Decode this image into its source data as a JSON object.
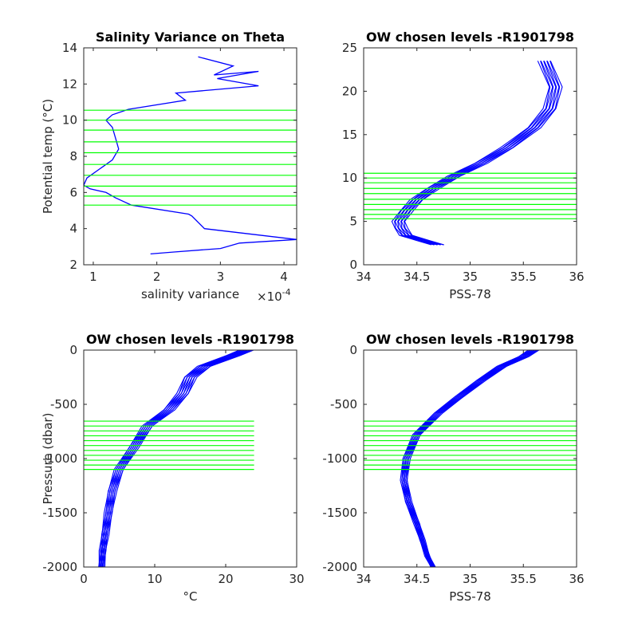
{
  "chart_data": [
    {
      "id": "p1",
      "type": "line",
      "title": "Salinity Variance on Theta",
      "xlabel": "salinity variance",
      "ylabel": "Potential temp (°C)",
      "x_multiplier_label": "×10",
      "x_multiplier_exp": "-4",
      "xlim": [
        0.85,
        4.2
      ],
      "ylim": [
        2,
        14
      ],
      "xticks": [
        1,
        2,
        3,
        4
      ],
      "yticks": [
        2,
        4,
        6,
        8,
        10,
        12,
        14
      ],
      "series": [
        {
          "x": [
            2.65,
            3.2,
            2.9,
            3.6,
            2.95,
            3.6,
            2.3,
            2.45,
            1.55,
            1.3,
            1.2,
            1.3,
            1.35,
            1.4,
            1.3,
            1.1,
            0.9,
            0.85,
            0.95,
            1.2,
            1.35,
            1.6,
            2.5,
            2.55,
            2.75,
            4.2,
            3.3,
            3.0,
            2.25,
            1.9
          ],
          "y": [
            13.5,
            13.0,
            12.5,
            12.7,
            12.3,
            11.9,
            11.5,
            11.1,
            10.6,
            10.3,
            10.0,
            9.6,
            9.0,
            8.4,
            7.8,
            7.3,
            6.8,
            6.4,
            6.2,
            6.0,
            5.7,
            5.3,
            4.8,
            4.7,
            4.0,
            3.4,
            3.2,
            2.9,
            2.7,
            2.6
          ]
        }
      ],
      "hlines": [
        5.3,
        5.8,
        6.35,
        6.95,
        7.55,
        8.2,
        8.8,
        9.45,
        10.0,
        10.55
      ],
      "hline_span": [
        0.85,
        4.2
      ]
    },
    {
      "id": "p2",
      "type": "line",
      "title": "OW chosen levels -R1901798",
      "xlabel": "PSS-78",
      "ylabel": "",
      "xlim": [
        34,
        36
      ],
      "ylim": [
        0,
        25
      ],
      "xticks": [
        "34",
        "34.5",
        "35",
        "35.5",
        "36"
      ],
      "yticks": [
        0,
        5,
        10,
        15,
        20,
        25
      ],
      "series": [
        {
          "x": [
            34.7,
            34.55,
            34.4,
            34.35,
            34.33,
            34.4,
            34.5,
            34.65,
            34.85,
            35.1,
            35.35,
            35.6,
            35.75,
            35.8,
            35.7
          ],
          "y": [
            2.3,
            2.8,
            3.4,
            4.2,
            5.0,
            6.2,
            7.5,
            8.8,
            10.2,
            11.7,
            13.5,
            15.8,
            18.0,
            20.5,
            23.5
          ]
        }
      ],
      "band_width": 0.12,
      "band_count": 9,
      "hlines": [
        5.3,
        5.8,
        6.35,
        6.95,
        7.55,
        8.2,
        8.8,
        9.45,
        10.0,
        10.55
      ],
      "hline_span": [
        34,
        36
      ]
    },
    {
      "id": "p3",
      "type": "line",
      "title": "OW chosen levels -R1901798",
      "xlabel": "°C",
      "ylabel": "Pressure (dbar)",
      "xlim": [
        0,
        30
      ],
      "ylim": [
        -2000,
        0
      ],
      "xticks": [
        0,
        10,
        20,
        30
      ],
      "yticks": [
        -2000,
        -1500,
        -1000,
        -500,
        0
      ],
      "series": [
        {
          "x": [
            23,
            21,
            17,
            15,
            14,
            12,
            9,
            7,
            5,
            4,
            3.5,
            3,
            2.7,
            2.5
          ],
          "y": [
            0,
            -50,
            -150,
            -250,
            -400,
            -550,
            -700,
            -900,
            -1100,
            -1300,
            -1500,
            -1700,
            -1850,
            -2000
          ]
        }
      ],
      "band_width": 2.0,
      "band_count": 11,
      "hlines": [
        -655,
        -700,
        -745,
        -790,
        -835,
        -880,
        -925,
        -970,
        -1015,
        -1060,
        -1100
      ],
      "hline_span": [
        0,
        24
      ]
    },
    {
      "id": "p4",
      "type": "line",
      "title": "OW chosen levels -R1901798",
      "xlabel": "PSS-78",
      "ylabel": "",
      "xlim": [
        34,
        36
      ],
      "ylim": [
        -2000,
        0
      ],
      "xticks": [
        "34",
        "34.5",
        "35",
        "35.5",
        "36"
      ],
      "yticks": [
        -2000,
        -1500,
        -1000,
        -500,
        0
      ],
      "series": [
        {
          "x": [
            35.6,
            35.5,
            35.3,
            35.1,
            34.9,
            34.7,
            34.5,
            34.4,
            34.38,
            34.42,
            34.5,
            34.55,
            34.6,
            34.65
          ],
          "y": [
            0,
            -60,
            -150,
            -280,
            -430,
            -580,
            -780,
            -1000,
            -1200,
            -1400,
            -1600,
            -1750,
            -1900,
            -2000
          ]
        }
      ],
      "band_width": 0.1,
      "band_count": 11,
      "hlines": [
        -655,
        -700,
        -745,
        -790,
        -835,
        -880,
        -925,
        -970,
        -1015,
        -1060,
        -1100
      ],
      "hline_span": [
        34,
        36
      ]
    }
  ]
}
